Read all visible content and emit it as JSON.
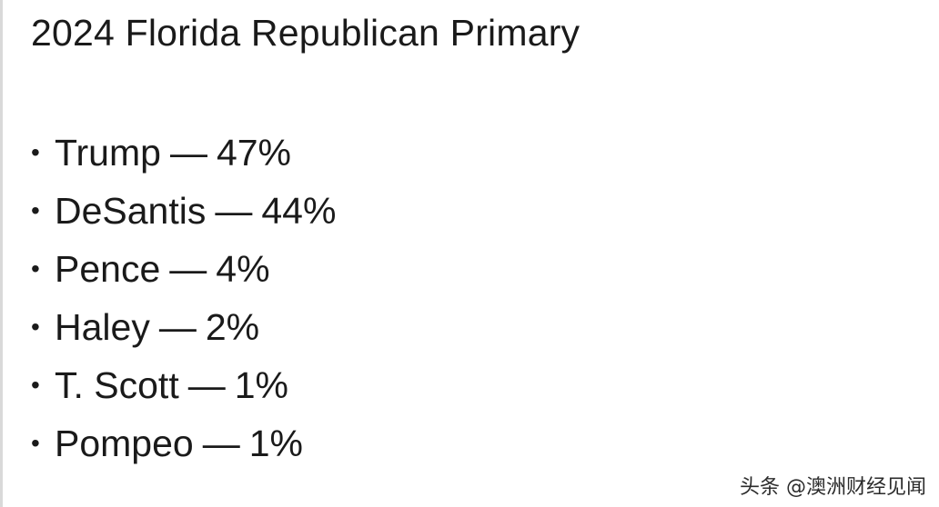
{
  "post": {
    "title": "2024 Florida Republican Primary",
    "bullet": "•",
    "dash": "—",
    "results": [
      {
        "candidate": "Trump",
        "share": "47%"
      },
      {
        "candidate": "DeSantis",
        "share": "44%"
      },
      {
        "candidate": "Pence",
        "share": "4%"
      },
      {
        "candidate": "Haley",
        "share": "2%"
      },
      {
        "candidate": "T. Scott",
        "share": "1%"
      },
      {
        "candidate": "Pompeo",
        "share": "1%"
      }
    ]
  },
  "watermark": {
    "text": "头条 @澳洲财经见闻"
  }
}
